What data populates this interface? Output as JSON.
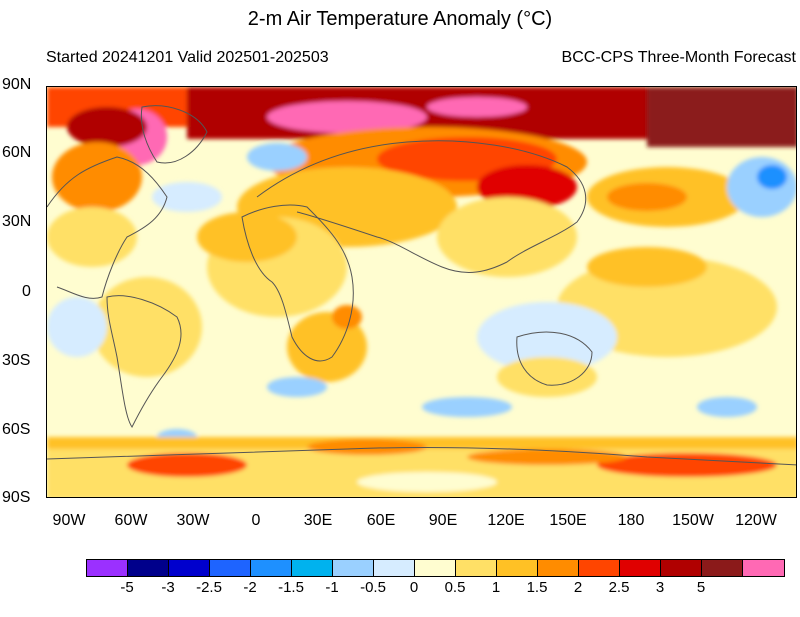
{
  "title": "2-m Air Temperature Anomaly (°C)",
  "subtitle_left": "Started 20241201  Valid 202501-202503",
  "subtitle_right": "BCC-CPS Three-Month Forecast",
  "lat_labels": [
    "90N",
    "60N",
    "30N",
    "0",
    "30S",
    "60S",
    "90S"
  ],
  "lon_labels": [
    "90W",
    "60W",
    "30W",
    "0",
    "30E",
    "60E",
    "90E",
    "120E",
    "150E",
    "180",
    "150W",
    "120W"
  ],
  "colorbar": {
    "colors": [
      "#9b30ff",
      "#00008b",
      "#0000cd",
      "#1e64ff",
      "#1e90ff",
      "#00b2ee",
      "#9ad0ff",
      "#d6ecff",
      "#fffdd0",
      "#ffe066",
      "#ffc125",
      "#ff8c00",
      "#ff4500",
      "#e00000",
      "#b00000",
      "#8b1a1a",
      "#ff69b4"
    ],
    "labels": [
      "-5",
      "-3",
      "-2.5",
      "-2",
      "-1.5",
      "-1",
      "-0.5",
      "0",
      "0.5",
      "1",
      "1.5",
      "2",
      "2.5",
      "3",
      "5"
    ]
  }
}
